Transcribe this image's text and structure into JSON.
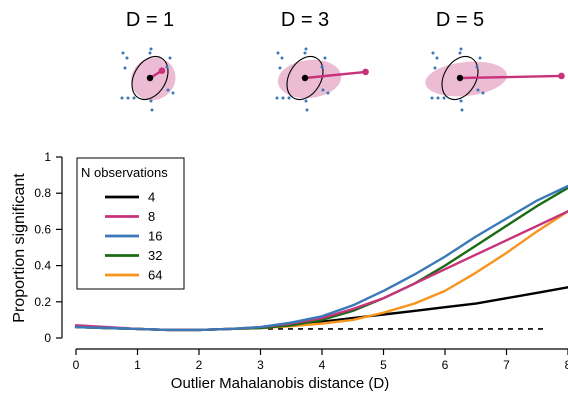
{
  "panels": [
    {
      "label": "D = 1",
      "D": 1
    },
    {
      "label": "D = 3",
      "D": 3
    },
    {
      "label": "D = 5",
      "D": 5
    }
  ],
  "panel_colors": {
    "ellipse": "#e8b0cc",
    "vector": "#c8327a",
    "points": "#3a78b8",
    "center": "#000000"
  },
  "chart_data": {
    "type": "line",
    "xlabel": "Outlier Mahalanobis distance (D)",
    "ylabel": "Proportion significant",
    "xlim": [
      0,
      8
    ],
    "ylim": [
      0,
      1
    ],
    "xticks": [
      0,
      1,
      2,
      3,
      4,
      5,
      6,
      7,
      8
    ],
    "yticks": [
      0,
      0.2,
      0.4,
      0.6,
      0.8,
      1
    ],
    "ytick_labels": [
      "0",
      "0.2",
      "0.4",
      "0.6",
      "0.8",
      "1"
    ],
    "x": [
      0,
      0.5,
      1,
      1.5,
      2,
      2.5,
      3,
      3.5,
      4,
      4.5,
      5,
      5.5,
      6,
      6.5,
      7,
      7.5,
      8
    ],
    "legend": {
      "title": "N observations",
      "position": "top-left"
    },
    "reference_line": {
      "y": 0.05,
      "style": "dashed",
      "color": "#000000"
    },
    "series": [
      {
        "name": "4",
        "color": "#000000",
        "values": [
          0.06,
          0.055,
          0.05,
          0.045,
          0.045,
          0.05,
          0.055,
          0.07,
          0.09,
          0.11,
          0.13,
          0.15,
          0.17,
          0.19,
          0.22,
          0.25,
          0.28
        ]
      },
      {
        "name": "8",
        "color": "#c8327a",
        "values": [
          0.07,
          0.06,
          0.05,
          0.045,
          0.045,
          0.05,
          0.06,
          0.08,
          0.11,
          0.16,
          0.22,
          0.3,
          0.38,
          0.46,
          0.54,
          0.62,
          0.7
        ]
      },
      {
        "name": "16",
        "color": "#3a78b8",
        "values": [
          0.06,
          0.055,
          0.05,
          0.045,
          0.045,
          0.05,
          0.06,
          0.085,
          0.12,
          0.18,
          0.26,
          0.35,
          0.45,
          0.56,
          0.66,
          0.76,
          0.84
        ]
      },
      {
        "name": "32",
        "color": "#1a6b14",
        "values": [
          0.06,
          0.055,
          0.05,
          0.045,
          0.045,
          0.05,
          0.055,
          0.07,
          0.1,
          0.15,
          0.22,
          0.3,
          0.4,
          0.51,
          0.62,
          0.73,
          0.83
        ]
      },
      {
        "name": "64",
        "color": "#f7941d",
        "values": [
          0.06,
          0.055,
          0.05,
          0.045,
          0.045,
          0.05,
          0.055,
          0.065,
          0.08,
          0.1,
          0.14,
          0.19,
          0.26,
          0.36,
          0.47,
          0.59,
          0.7
        ]
      }
    ]
  }
}
